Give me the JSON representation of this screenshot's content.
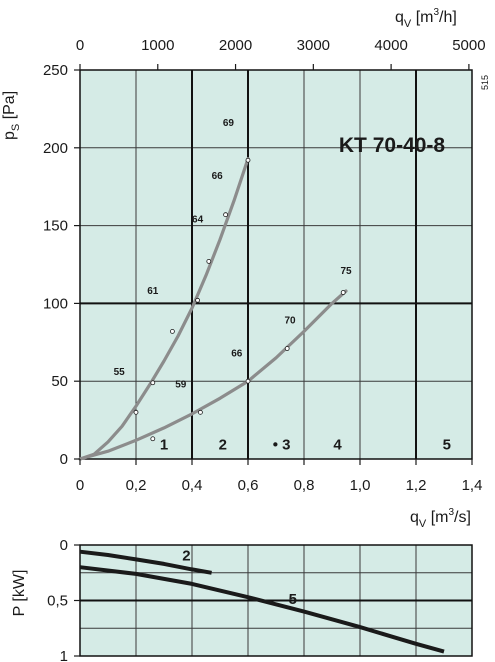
{
  "colors": {
    "panel": "#d5ebe6",
    "grid_minor": "#3a3a3a",
    "grid_major": "#111111",
    "curve": "#8c8c8c",
    "power_line": "#1a1a1a",
    "text": "#1a1a1a"
  },
  "side_label": "515",
  "chart_data": [
    {
      "type": "line",
      "title": "KT  70-40-8",
      "xlabel": "q_V [m³/s]",
      "x_label_parts": {
        "q": "q",
        "sub": "V",
        "unit_pre": "[m",
        "sup": "3",
        "unit_post": "/s]"
      },
      "ylabel": "p_S [Pa]",
      "y_label_parts": {
        "p": "p",
        "sub": "S",
        "unit": "[Pa]"
      },
      "xlim": [
        0,
        1.4
      ],
      "ylim": [
        0,
        250
      ],
      "x_ticks": [
        0,
        0.2,
        0.4,
        0.6,
        0.8,
        1.0,
        1.2,
        1.4
      ],
      "x_tick_labels": [
        "0",
        "0,2",
        "0,4",
        "0,6",
        "0,8",
        "1,0",
        "1,2",
        "1,4"
      ],
      "y_ticks": [
        0,
        50,
        100,
        150,
        200,
        250
      ],
      "y_tick_labels": [
        "0",
        "50",
        "100",
        "150",
        "200",
        "250"
      ],
      "x_minor_lines": [
        0.2,
        0.6,
        0.8,
        1.0,
        1.4
      ],
      "x_major_lines": [
        0.4,
        0.6,
        1.2
      ],
      "y_minor_lines": [
        50,
        150,
        200
      ],
      "y_major_lines": [
        100
      ],
      "top_axis": {
        "label_parts": {
          "q": "q",
          "sub": "V",
          "unit_pre": "[m",
          "sup": "3",
          "unit_post": "/h]"
        },
        "ticks_m3h": [
          0,
          1000,
          2000,
          3000,
          4000,
          5000
        ],
        "tick_labels": [
          "0",
          "1000",
          "2000",
          "3000",
          "4000",
          "5000"
        ]
      },
      "series": [
        {
          "x": [
            0,
            0.05,
            0.1,
            0.15,
            0.2,
            0.25,
            0.3,
            0.35,
            0.4,
            0.45,
            0.5,
            0.55,
            0.6
          ],
          "y": [
            0,
            3,
            11,
            21,
            34,
            48,
            63,
            79,
            97,
            118,
            141,
            166,
            193
          ]
        },
        {
          "x": [
            0,
            0.1,
            0.2,
            0.3,
            0.4,
            0.5,
            0.6,
            0.7,
            0.8,
            0.9,
            0.95
          ],
          "y": [
            0,
            5,
            12,
            20,
            29,
            39,
            50,
            65,
            82,
            100,
            108
          ]
        }
      ],
      "markers": [
        {
          "x": 0.2,
          "y": 30,
          "label": "55",
          "lx": 0.14,
          "ly": 54
        },
        {
          "x": 0.26,
          "y": 49,
          "label": "",
          "lx": 0,
          "ly": 0
        },
        {
          "x": 0.33,
          "y": 82,
          "label": "",
          "lx": 0,
          "ly": 0
        },
        {
          "x": 0.42,
          "y": 102,
          "label": "61",
          "lx": 0.26,
          "ly": 106
        },
        {
          "x": 0.46,
          "y": 127,
          "label": "",
          "lx": 0,
          "ly": 0
        },
        {
          "x": 0.52,
          "y": 157,
          "label": "64",
          "lx": 0.42,
          "ly": 152
        },
        {
          "x": 0.6,
          "y": 192,
          "label": "66",
          "lx": 0.49,
          "ly": 180
        },
        {
          "x": 0,
          "y": 0,
          "label": "69",
          "lx": 0.53,
          "ly": 214
        },
        {
          "x": 0.26,
          "y": 13,
          "label": "",
          "lx": 0,
          "ly": 0
        },
        {
          "x": 0.43,
          "y": 30,
          "label": "59",
          "lx": 0.36,
          "ly": 46
        },
        {
          "x": 0.6,
          "y": 50,
          "label": "66",
          "lx": 0.56,
          "ly": 66
        },
        {
          "x": 0.74,
          "y": 71,
          "label": "70",
          "lx": 0.75,
          "ly": 87
        },
        {
          "x": 0.94,
          "y": 107,
          "label": "75",
          "lx": 0.95,
          "ly": 119
        }
      ],
      "regions": [
        {
          "label": "1",
          "x": 0.3,
          "y": 6
        },
        {
          "label": "2",
          "x": 0.51,
          "y": 6
        },
        {
          "label": "• 3",
          "x": 0.72,
          "y": 6
        },
        {
          "label": "4",
          "x": 0.92,
          "y": 6
        },
        {
          "label": "5",
          "x": 1.31,
          "y": 6
        }
      ]
    },
    {
      "type": "line",
      "ylabel": "P [kW]",
      "y_label_parts": {
        "p": "P",
        "unit": "[kW]"
      },
      "xlim": [
        0,
        1.4
      ],
      "ylim": [
        0,
        1
      ],
      "y_inverted": true,
      "y_ticks": [
        0,
        0.5,
        1
      ],
      "y_tick_labels": [
        "0",
        "0,5",
        "1"
      ],
      "x_grid_lines": [
        0.2,
        0.4,
        0.6,
        0.8,
        1.0,
        1.2
      ],
      "y_minor_lines": [
        0.25,
        0.75
      ],
      "y_major_lines": [
        0.5
      ],
      "series": [
        {
          "name": "2",
          "x": [
            0,
            0.1,
            0.2,
            0.3,
            0.4,
            0.47
          ],
          "y": [
            0.06,
            0.09,
            0.13,
            0.17,
            0.22,
            0.25
          ]
        },
        {
          "name": "5",
          "x": [
            0,
            0.2,
            0.4,
            0.6,
            0.8,
            1.0,
            1.2,
            1.3
          ],
          "y": [
            0.2,
            0.26,
            0.35,
            0.47,
            0.6,
            0.74,
            0.89,
            0.96
          ]
        }
      ],
      "series_labels": [
        {
          "label": "2",
          "x": 0.38,
          "y": 0.14
        },
        {
          "label": "5",
          "x": 0.76,
          "y": 0.53
        }
      ]
    }
  ]
}
